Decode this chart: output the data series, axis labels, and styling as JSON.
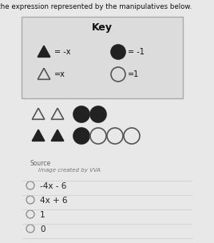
{
  "title_line1": "Simplify the expression represented by the manipulatives below.",
  "title_fontsize": 6.5,
  "bg_color": "#e8e8e8",
  "key_title": "Key",
  "source_label": "Source",
  "source_sub": "Image created by VVA",
  "choices": [
    "-4x - 6",
    "4x + 6",
    "1",
    "0"
  ],
  "tri_dark_color": "#222222",
  "tri_light_color": "#555555",
  "circ_dark_color": "#222222",
  "circ_light_color": "#555555",
  "key_box_facecolor": "#dcdcdc",
  "key_box_edgecolor": "#aaaaaa"
}
